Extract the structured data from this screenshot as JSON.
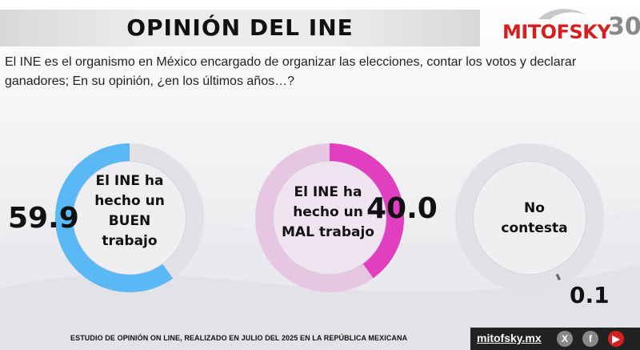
{
  "header": {
    "title": "OPINIÓN DEL  INE",
    "logo_text": "MITOFSKY",
    "logo_number": "30"
  },
  "question": "El INE es el organismo en México encargado de organizar las elecciones, contar los votos y declarar ganadores; En su opinión, ¿en los últimos años…?",
  "chart_data": {
    "type": "pie",
    "categories": [
      "El INE ha hecho un BUEN trabajo",
      "El INE ha hecho un MAL trabajo",
      "No contesta"
    ],
    "values": [
      59.9,
      40.0,
      0.1
    ],
    "value_labels": [
      "59.9",
      "40.0",
      "0.1"
    ],
    "center_labels": [
      [
        "El INE ha",
        "hecho un",
        "BUEN",
        "trabajo"
      ],
      [
        "El INE ha",
        "hecho un",
        "MAL trabajo"
      ],
      [
        "No",
        "contesta"
      ]
    ],
    "colors": [
      "#5ab8f5",
      "#e040c0",
      "#6a6a6a"
    ]
  },
  "footer": {
    "note": "ESTUDIO DE OPINIÓN ON LINE, REALIZADO EN JULIO DEL 2025 EN LA REPÚBLICA MEXICANA",
    "site": "mitofsky.mx",
    "social_x": "X",
    "social_fb": "f",
    "social_yt": "▶"
  }
}
